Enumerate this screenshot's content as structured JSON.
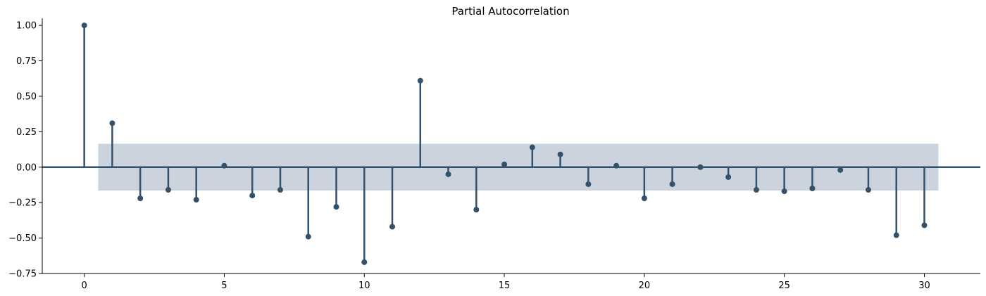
{
  "chart_data": {
    "type": "stem",
    "title": "Partial Autocorrelation",
    "xlabel": "",
    "ylabel": "",
    "xlim": [
      -1.5,
      32
    ],
    "ylim": [
      -0.75,
      1.05
    ],
    "x_ticks": [
      0,
      5,
      10,
      15,
      20,
      25,
      30
    ],
    "y_ticks": [
      -0.75,
      -0.5,
      -0.25,
      0.0,
      0.25,
      0.5,
      0.75,
      1.0
    ],
    "x_tick_labels": [
      "0",
      "5",
      "10",
      "15",
      "20",
      "25",
      "30"
    ],
    "y_tick_labels": [
      "−0.75",
      "−0.50",
      "−0.25",
      "0.00",
      "0.25",
      "0.50",
      "0.75",
      "1.00"
    ],
    "lags": [
      0,
      1,
      2,
      3,
      4,
      5,
      6,
      7,
      8,
      9,
      10,
      11,
      12,
      13,
      14,
      15,
      16,
      17,
      18,
      19,
      20,
      21,
      22,
      23,
      24,
      25,
      26,
      27,
      28,
      29,
      30
    ],
    "values": [
      1.0,
      0.31,
      -0.22,
      -0.16,
      -0.23,
      0.01,
      -0.2,
      -0.16,
      -0.49,
      -0.28,
      -0.67,
      -0.42,
      0.61,
      -0.05,
      -0.3,
      0.02,
      0.14,
      0.09,
      -0.12,
      0.01,
      -0.22,
      -0.12,
      0.0,
      -0.07,
      -0.16,
      -0.17,
      -0.15,
      -0.02,
      -0.16,
      -0.48,
      -0.41
    ],
    "confidence_band": {
      "lower": -0.165,
      "upper": 0.165,
      "x_from": 0.5,
      "x_to": 30.5
    },
    "colors": {
      "stem": "#33516b",
      "band": "#cbd3de",
      "axis": "#000000"
    },
    "grid": false
  }
}
